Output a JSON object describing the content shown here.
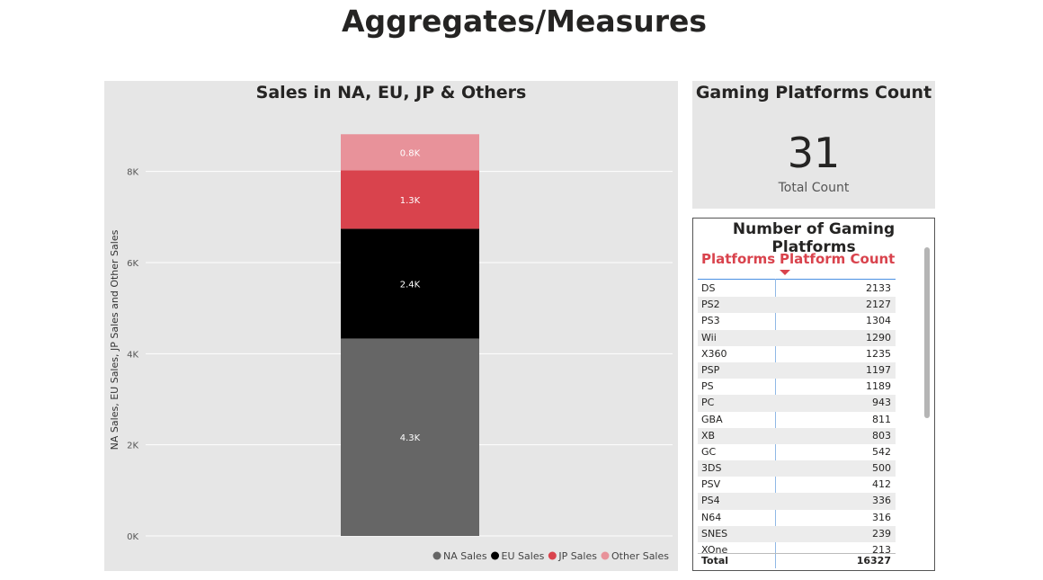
{
  "page_title": "Aggregates/Measures",
  "colors": {
    "na": "#666666",
    "eu": "#000000",
    "jp": "#d9434d",
    "other": "#e8929a",
    "accent": "#d9434d"
  },
  "chart_data": {
    "type": "bar",
    "stacked": true,
    "title": "Sales in NA, EU, JP & Others",
    "xlabel": "",
    "ylabel": "NA Sales, EU Sales, JP Sales and Other Sales",
    "ylim": [
      0,
      9000
    ],
    "yticks": [
      0,
      2000,
      4000,
      6000,
      8000
    ],
    "ytick_labels": [
      "0K",
      "2K",
      "4K",
      "6K",
      "8K"
    ],
    "grid": true,
    "legend_position": "bottom-right",
    "series": [
      {
        "name": "NA Sales",
        "value": 4333,
        "label": "4.3K",
        "color": "#666666"
      },
      {
        "name": "EU Sales",
        "value": 2409,
        "label": "2.4K",
        "color": "#000000"
      },
      {
        "name": "JP Sales",
        "value": 1284,
        "label": "1.3K",
        "color": "#d9434d"
      },
      {
        "name": "Other Sales",
        "value": 791,
        "label": "0.8K",
        "color": "#e8929a"
      }
    ]
  },
  "kpi": {
    "title": "Gaming Platforms Count",
    "value": "31",
    "label": "Total Count"
  },
  "table": {
    "title": "Number of Gaming Platforms",
    "col_platforms": "Platforms",
    "col_count": "Platform Count",
    "rows": [
      {
        "platform": "DS",
        "count": "2133"
      },
      {
        "platform": "PS2",
        "count": "2127"
      },
      {
        "platform": "PS3",
        "count": "1304"
      },
      {
        "platform": "Wii",
        "count": "1290"
      },
      {
        "platform": "X360",
        "count": "1235"
      },
      {
        "platform": "PSP",
        "count": "1197"
      },
      {
        "platform": "PS",
        "count": "1189"
      },
      {
        "platform": "PC",
        "count": "943"
      },
      {
        "platform": "GBA",
        "count": "811"
      },
      {
        "platform": "XB",
        "count": "803"
      },
      {
        "platform": "GC",
        "count": "542"
      },
      {
        "platform": "3DS",
        "count": "500"
      },
      {
        "platform": "PSV",
        "count": "412"
      },
      {
        "platform": "PS4",
        "count": "336"
      },
      {
        "platform": "N64",
        "count": "316"
      },
      {
        "platform": "SNES",
        "count": "239"
      },
      {
        "platform": "XOne",
        "count": "213"
      }
    ],
    "total_label": "Total",
    "total_value": "16327"
  }
}
